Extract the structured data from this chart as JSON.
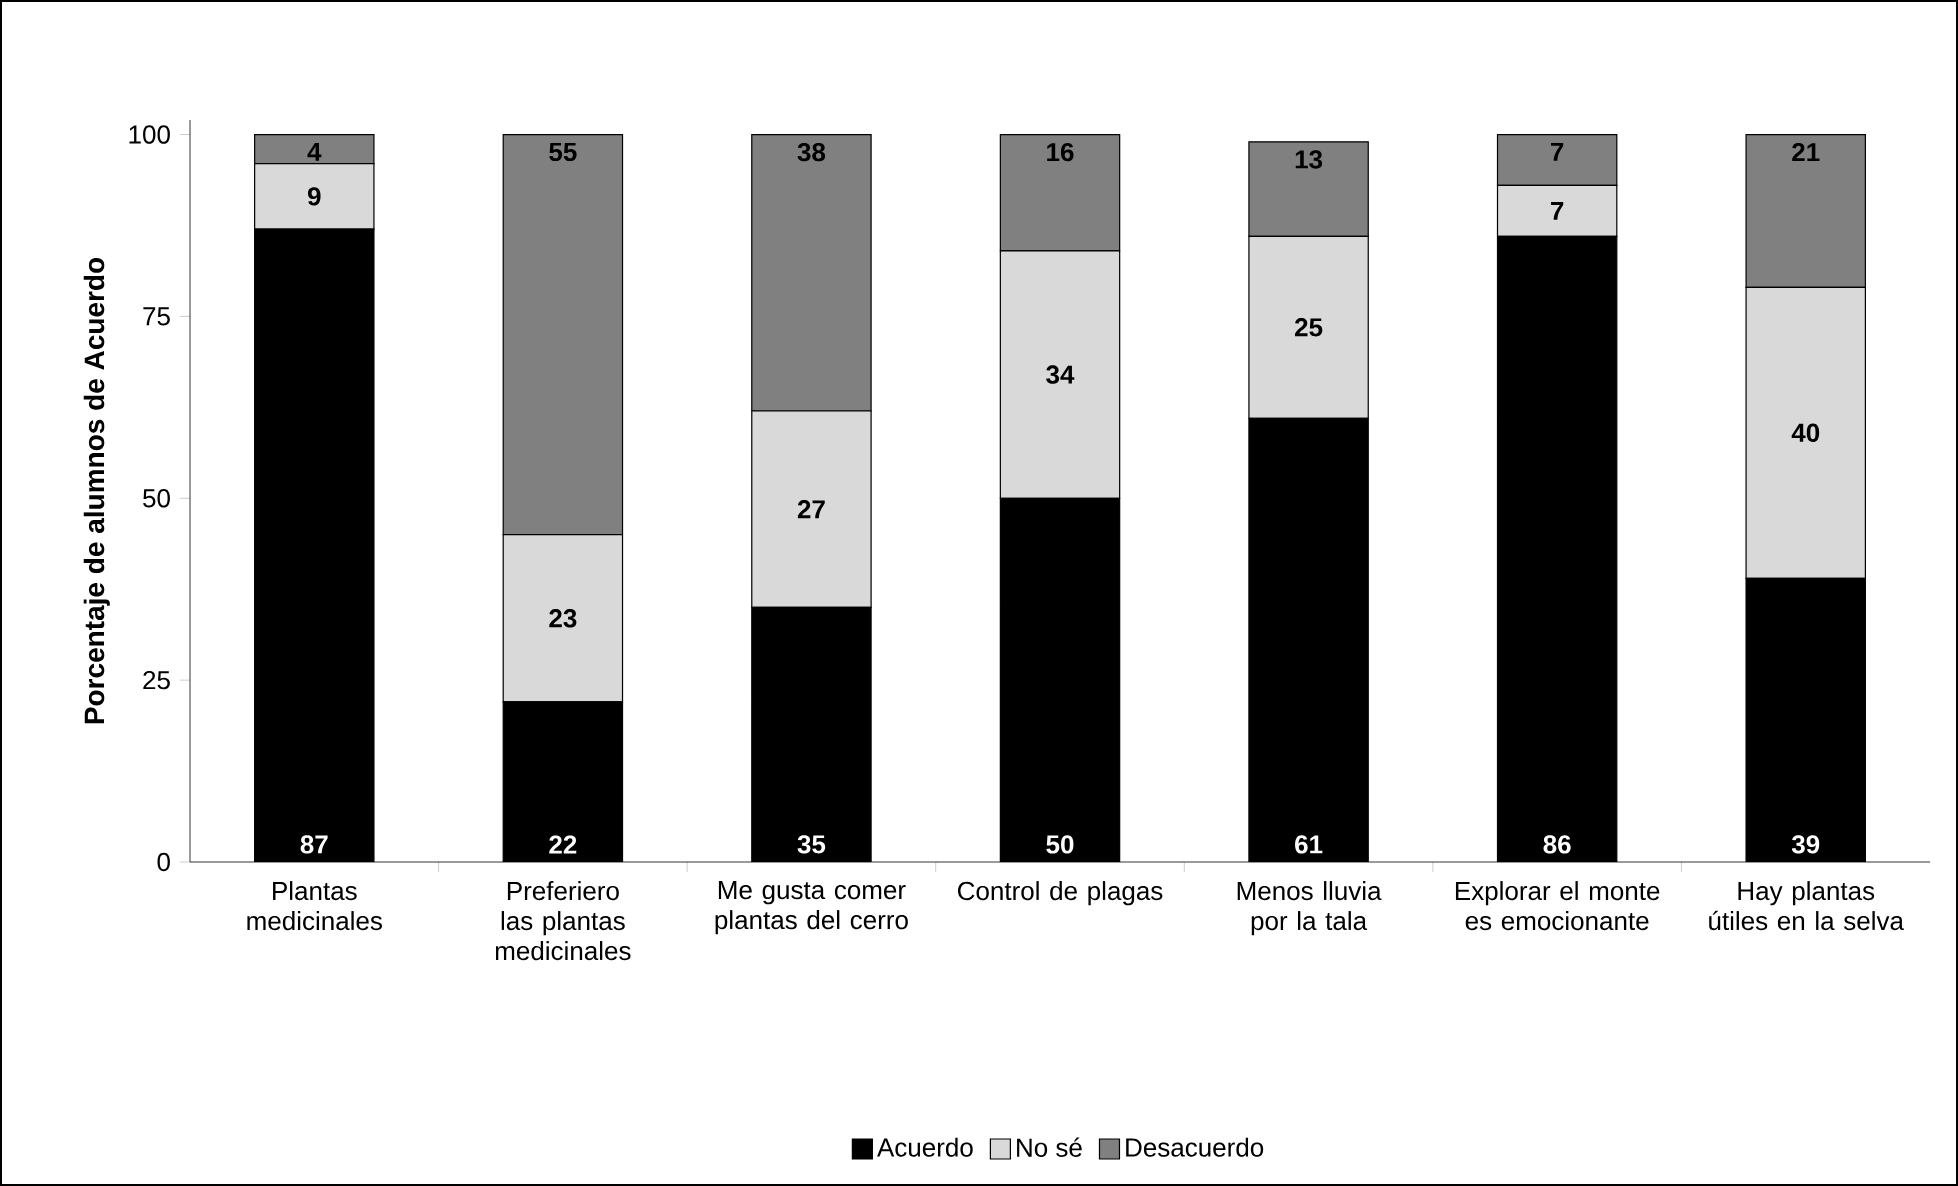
{
  "chart_data": {
    "type": "bar",
    "stacked": true,
    "data_labels": true,
    "legend": "bottom",
    "ylabel": "Porcentaje de alumnos de Acuerdo",
    "categories": [
      "Plantas medicinales",
      "Preferiero las plantas medicinales",
      "Me gusta comer plantas del cerro",
      "Control de plagas",
      "Menos lluvia por la tala",
      "Explorar el monte es emocionante",
      "Hay plantas útiles en la selva"
    ],
    "series": [
      {
        "name": "Acuerdo",
        "color": "#000000",
        "values": [
          87,
          22,
          35,
          50,
          61,
          86,
          39
        ]
      },
      {
        "name": "No sé",
        "color": "#d9d9d9",
        "values": [
          9,
          23,
          27,
          34,
          25,
          7,
          40
        ]
      },
      {
        "name": "Desacuerdo",
        "color": "#808080",
        "values": [
          4,
          55,
          38,
          16,
          13,
          7,
          21
        ]
      }
    ],
    "ylim": [
      0,
      102
    ],
    "yticks": [
      0,
      25,
      50,
      75,
      100
    ]
  }
}
